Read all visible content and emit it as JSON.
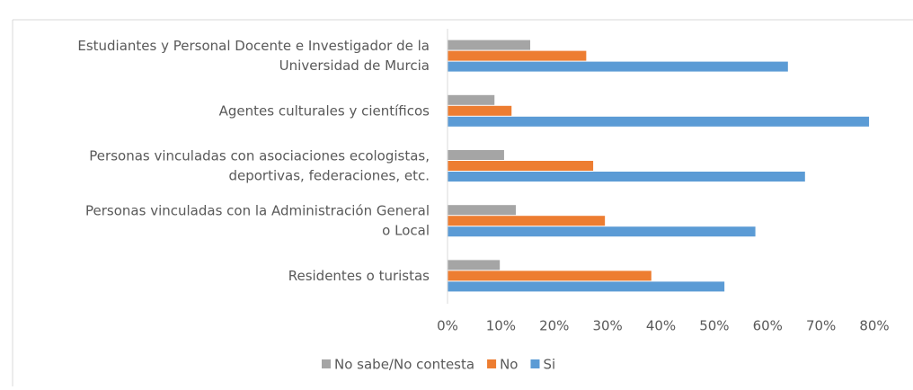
{
  "chart_data": {
    "type": "hbar",
    "categories": [
      [
        "Estudiantes y Personal Docente e Investigador de la",
        "Universidad de Murcia"
      ],
      [
        "Agentes culturales y científicos"
      ],
      [
        "Personas vinculadas con asociaciones ecologistas,",
        "deportivas, federaciones, etc."
      ],
      [
        "Personas vinculadas con la Administración General",
        "o Local"
      ],
      [
        "Residentes o turistas"
      ]
    ],
    "series": [
      {
        "name": "No sabe/No contesta",
        "color": "#a5a5a5",
        "values": [
          15.5,
          8.8,
          10.6,
          12.8,
          9.8
        ]
      },
      {
        "name": "No",
        "color": "#ed7d31",
        "values": [
          26,
          12,
          27.3,
          29.5,
          38.2
        ]
      },
      {
        "name": "Si",
        "color": "#5b9bd5",
        "values": [
          63.8,
          79,
          67,
          57.7,
          51.9
        ]
      }
    ],
    "xlim": [
      0,
      80
    ],
    "xticks": [
      {
        "value": 0,
        "label": "0%"
      },
      {
        "value": 10,
        "label": "10%"
      },
      {
        "value": 20,
        "label": "20%"
      },
      {
        "value": 30,
        "label": "30%"
      },
      {
        "value": 40,
        "label": "40%"
      },
      {
        "value": 50,
        "label": "50%"
      },
      {
        "value": 60,
        "label": "60%"
      },
      {
        "value": 70,
        "label": "70%"
      },
      {
        "value": 80,
        "label": "80%"
      }
    ],
    "grid": false,
    "legend": "bottom"
  }
}
